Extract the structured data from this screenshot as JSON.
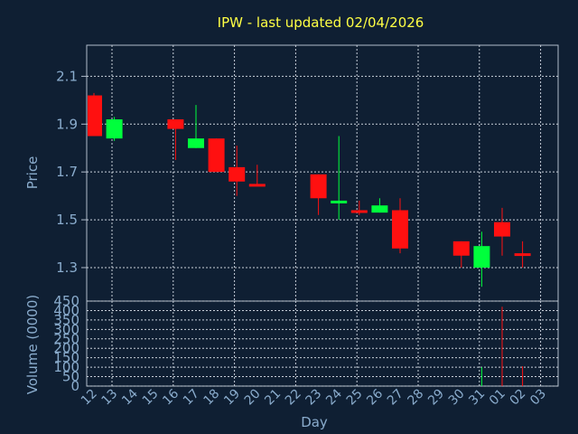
{
  "chart_data": [
    {
      "type": "candlestick",
      "title": "IPW - last updated 02/04/2026",
      "ylabel": "Price",
      "xlabel": "Day",
      "ylim": [
        1.16,
        2.23
      ],
      "yticks": [
        1.3,
        1.5,
        1.7,
        1.9,
        2.1
      ],
      "ytick_labels": [
        "1.3",
        "1.5",
        "1.7",
        "1.9",
        "2.1"
      ],
      "x_ticks": [
        "12",
        "13",
        "14",
        "15",
        "16",
        "17",
        "18",
        "19",
        "20",
        "21",
        "22",
        "23",
        "24",
        "25",
        "26",
        "27",
        "28",
        "29",
        "30",
        "31",
        "01",
        "02",
        "03"
      ],
      "grid": true,
      "up_color": "#00ff3c",
      "down_color": "#ff1010",
      "candles": [
        {
          "x": "12",
          "open": 2.02,
          "high": 2.03,
          "low": 1.85,
          "close": 1.85
        },
        {
          "x": "13",
          "open": 1.84,
          "high": 1.93,
          "low": 1.83,
          "close": 1.92
        },
        {
          "x": "16",
          "open": 1.92,
          "high": 1.92,
          "low": 1.75,
          "close": 1.88
        },
        {
          "x": "17",
          "open": 1.8,
          "high": 1.98,
          "low": 1.8,
          "close": 1.84
        },
        {
          "x": "18",
          "open": 1.84,
          "high": 1.84,
          "low": 1.7,
          "close": 1.7
        },
        {
          "x": "19",
          "open": 1.72,
          "high": 1.81,
          "low": 1.6,
          "close": 1.66
        },
        {
          "x": "20",
          "open": 1.65,
          "high": 1.73,
          "low": 1.64,
          "close": 1.64
        },
        {
          "x": "23",
          "open": 1.69,
          "high": 1.69,
          "low": 1.52,
          "close": 1.59
        },
        {
          "x": "24",
          "open": 1.57,
          "high": 1.85,
          "low": 1.5,
          "close": 1.58
        },
        {
          "x": "25",
          "open": 1.54,
          "high": 1.58,
          "low": 1.52,
          "close": 1.53
        },
        {
          "x": "26",
          "open": 1.53,
          "high": 1.59,
          "low": 1.53,
          "close": 1.56
        },
        {
          "x": "27",
          "open": 1.54,
          "high": 1.59,
          "low": 1.36,
          "close": 1.38
        },
        {
          "x": "30",
          "open": 1.41,
          "high": 1.41,
          "low": 1.3,
          "close": 1.35
        },
        {
          "x": "31",
          "open": 1.3,
          "high": 1.45,
          "low": 1.22,
          "close": 1.39
        },
        {
          "x": "01",
          "open": 1.49,
          "high": 1.55,
          "low": 1.35,
          "close": 1.43
        },
        {
          "x": "02",
          "open": 1.36,
          "high": 1.41,
          "low": 1.3,
          "close": 1.35
        }
      ]
    },
    {
      "type": "bar",
      "ylabel": "Volume (0000)",
      "xlabel": "Day",
      "ylim": [
        0,
        450
      ],
      "yticks": [
        0,
        50,
        100,
        150,
        200,
        250,
        300,
        350,
        400,
        450
      ],
      "ytick_labels": [
        "0",
        "50",
        "100",
        "150",
        "200",
        "250",
        "300",
        "350",
        "400",
        "450"
      ],
      "categories": [
        "12",
        "13",
        "16",
        "17",
        "18",
        "19",
        "20",
        "23",
        "24",
        "25",
        "26",
        "27",
        "30",
        "31",
        "01",
        "02"
      ],
      "values": [
        0,
        0,
        0,
        0,
        0,
        0,
        0,
        0,
        0,
        0,
        0,
        0,
        0,
        100,
        420,
        105
      ],
      "colors": [
        "#ff1010",
        "#00ff3c",
        "#ff1010",
        "#00ff3c",
        "#ff1010",
        "#ff1010",
        "#ff1010",
        "#ff1010",
        "#00ff3c",
        "#ff1010",
        "#00ff3c",
        "#ff1010",
        "#ff1010",
        "#00ff3c",
        "#ff1010",
        "#ff1010"
      ]
    }
  ]
}
